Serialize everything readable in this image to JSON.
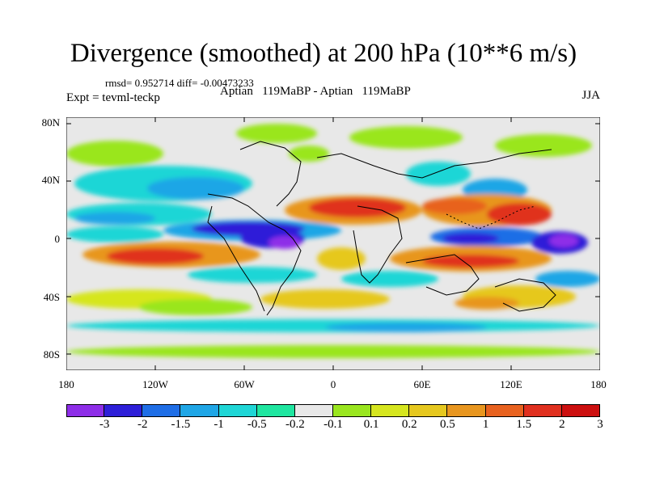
{
  "title": "Divergence (smoothed) at 200 hPa (10**6 m/s)",
  "stats": "rmsd= 0.952714 diff= -0.00473233",
  "experiment": "Expt = tevml-teckp",
  "comparison": "Aptian   119MaBP - Aptian   119MaBP",
  "season": "JJA",
  "axes": {
    "lat_labels": [
      "80N",
      "40N",
      "0",
      "40S",
      "80S"
    ],
    "lon_labels": [
      "180",
      "120W",
      "60W",
      "0",
      "60E",
      "120E",
      "180"
    ]
  },
  "colorbar": {
    "colors": [
      "#8e2ee8",
      "#2e1fd8",
      "#1f6ee6",
      "#1fa6e6",
      "#1fd6d6",
      "#1fe6a0",
      "#e8e8e8",
      "#9ae61f",
      "#d6e61f",
      "#e6c81f",
      "#e8961f",
      "#e8621f",
      "#e0301f",
      "#cc0f0f"
    ],
    "labels": [
      "-3",
      "-2",
      "-1.5",
      "-1",
      "-0.5",
      "-0.2",
      "-0.1",
      "0.1",
      "0.2",
      "0.5",
      "1",
      "1.5",
      "2",
      "3"
    ]
  }
}
